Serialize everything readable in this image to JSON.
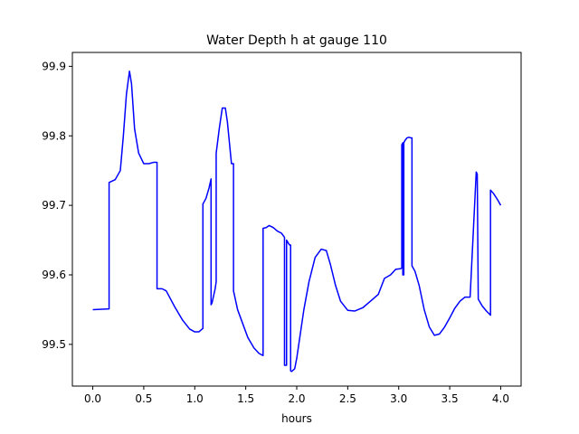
{
  "chart_data": {
    "type": "line",
    "title": "Water Depth h at gauge 110",
    "xlabel": "hours",
    "ylabel": "",
    "xlim": [
      -0.2,
      4.2
    ],
    "ylim": [
      99.44,
      99.92
    ],
    "xticks": [
      0.0,
      0.5,
      1.0,
      1.5,
      2.0,
      2.5,
      3.0,
      3.5,
      4.0
    ],
    "xtick_labels": [
      "0.0",
      "0.5",
      "1.0",
      "1.5",
      "2.0",
      "2.5",
      "3.0",
      "3.5",
      "4.0"
    ],
    "yticks": [
      99.5,
      99.6,
      99.7,
      99.8,
      99.9
    ],
    "ytick_labels": [
      "99.5",
      "99.6",
      "99.7",
      "99.8",
      "99.9"
    ],
    "grid": false,
    "series": [
      {
        "color": "#0000ff",
        "x": [
          0.0,
          0.16,
          0.16,
          0.22,
          0.27,
          0.3,
          0.33,
          0.36,
          0.38,
          0.41,
          0.45,
          0.5,
          0.55,
          0.6,
          0.63,
          0.63,
          0.68,
          0.72,
          0.8,
          0.88,
          0.95,
          1.0,
          1.04,
          1.08,
          1.08,
          1.11,
          1.14,
          1.16,
          1.16,
          1.17,
          1.2,
          1.21,
          1.21,
          1.24,
          1.27,
          1.3,
          1.32,
          1.34,
          1.36,
          1.38,
          1.38,
          1.42,
          1.47,
          1.52,
          1.58,
          1.63,
          1.67,
          1.67,
          1.7,
          1.73,
          1.77,
          1.81,
          1.85,
          1.88,
          1.88,
          1.9,
          1.9,
          1.9,
          1.92,
          1.93,
          1.94,
          1.94,
          1.95,
          1.98,
          2.0,
          2.03,
          2.07,
          2.12,
          2.18,
          2.24,
          2.29,
          2.33,
          2.38,
          2.43,
          2.5,
          2.57,
          2.65,
          2.73,
          2.8,
          2.86,
          2.92,
          2.97,
          3.02,
          3.03,
          3.03,
          3.04,
          3.04,
          3.05,
          3.05,
          3.06,
          3.08,
          3.1,
          3.12,
          3.13,
          3.13,
          3.16,
          3.2,
          3.25,
          3.3,
          3.35,
          3.4,
          3.45,
          3.5,
          3.55,
          3.6,
          3.65,
          3.7,
          3.76,
          3.76,
          3.77,
          3.77,
          3.78,
          3.78,
          3.82,
          3.86,
          3.9,
          3.9,
          3.93,
          3.97,
          4.0
        ],
        "y": [
          99.55,
          99.551,
          99.733,
          99.737,
          99.75,
          99.8,
          99.86,
          99.893,
          99.875,
          99.81,
          99.775,
          99.76,
          99.76,
          99.762,
          99.762,
          99.58,
          99.58,
          99.577,
          99.555,
          99.535,
          99.522,
          99.518,
          99.518,
          99.523,
          99.702,
          99.71,
          99.725,
          99.738,
          99.557,
          99.56,
          99.58,
          99.59,
          99.775,
          99.81,
          99.84,
          99.84,
          99.82,
          99.79,
          99.76,
          99.76,
          99.577,
          99.55,
          99.53,
          99.51,
          99.495,
          99.487,
          99.484,
          99.667,
          99.668,
          99.671,
          99.668,
          99.663,
          99.66,
          99.654,
          99.47,
          99.47,
          99.65,
          99.65,
          99.645,
          99.643,
          99.643,
          99.462,
          99.461,
          99.465,
          99.48,
          99.51,
          99.55,
          99.59,
          99.625,
          99.637,
          99.635,
          99.615,
          99.585,
          99.562,
          99.549,
          99.548,
          99.553,
          99.563,
          99.572,
          99.595,
          99.6,
          99.608,
          99.609,
          99.61,
          99.787,
          99.79,
          99.6,
          99.6,
          99.79,
          99.793,
          99.797,
          99.798,
          99.797,
          99.797,
          99.613,
          99.605,
          99.585,
          99.55,
          99.525,
          99.513,
          99.515,
          99.525,
          99.538,
          99.552,
          99.562,
          99.568,
          99.568,
          99.748,
          99.748,
          99.745,
          99.745,
          99.565,
          99.565,
          99.555,
          99.548,
          99.542,
          99.722,
          99.717,
          99.708,
          99.7
        ]
      }
    ]
  }
}
